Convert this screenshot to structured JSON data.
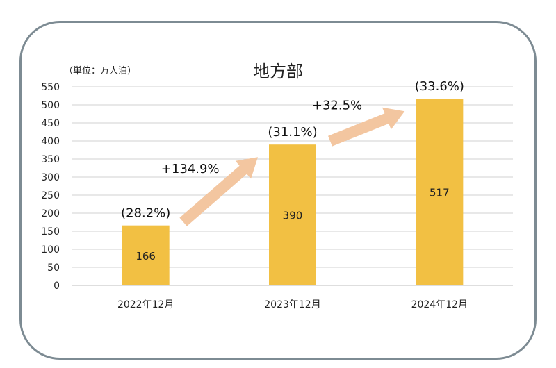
{
  "chart_data": {
    "type": "bar",
    "title": "地方部",
    "unit_label": "（単位：万人泊）",
    "categories": [
      "2022年12月",
      "2023年12月",
      "2024年12月"
    ],
    "values": [
      166,
      390,
      517
    ],
    "value_labels": [
      "166",
      "390",
      "517"
    ],
    "share_labels": [
      "(28.2%)",
      "(31.1%)",
      "(33.6%)"
    ],
    "growth_labels": [
      "+134.9%",
      "+32.5%"
    ],
    "ylim": [
      0,
      550
    ],
    "yticks": [
      0,
      50,
      100,
      150,
      200,
      250,
      300,
      350,
      400,
      450,
      500,
      550
    ],
    "grid": true,
    "colors": {
      "bar": "#F2C043",
      "arrow": "#F3C6A0",
      "grid": "#d0d0d0"
    }
  }
}
